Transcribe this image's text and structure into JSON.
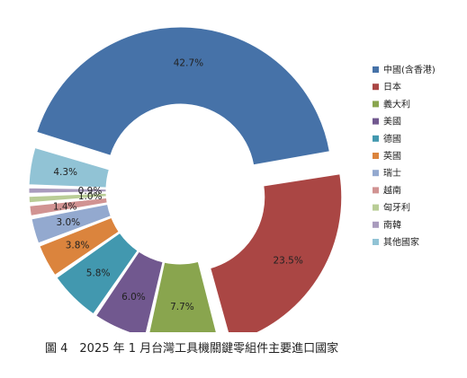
{
  "caption": "圖 4　2025 年 1 月台灣工具機關鍵零組件主要進口國家",
  "chart_data": {
    "type": "pie",
    "donut": true,
    "title": "",
    "legend_position": "right",
    "slices": [
      {
        "label": "中國(含香港)",
        "value": 42.7,
        "display": "42.7%",
        "color": "#4672a8",
        "exploded": true
      },
      {
        "label": "日本",
        "value": 23.5,
        "display": "23.5%",
        "color": "#aa4644",
        "exploded": true
      },
      {
        "label": "義大利",
        "value": 7.7,
        "display": "7.7%",
        "color": "#89a54e",
        "exploded": false
      },
      {
        "label": "美國",
        "value": 6.0,
        "display": "6.0%",
        "color": "#71588f",
        "exploded": false
      },
      {
        "label": "德國",
        "value": 5.8,
        "display": "5.8%",
        "color": "#4298af",
        "exploded": false
      },
      {
        "label": "英國",
        "value": 3.8,
        "display": "3.8%",
        "color": "#db843d",
        "exploded": false
      },
      {
        "label": "瑞士",
        "value": 3.0,
        "display": "3.0%",
        "color": "#93a9cf",
        "exploded": false
      },
      {
        "label": "越南",
        "value": 1.4,
        "display": "1.4%",
        "color": "#d19392",
        "exploded": false
      },
      {
        "label": "匈牙利",
        "value": 1.0,
        "display": "1.0%",
        "color": "#b9cd96",
        "exploded": false
      },
      {
        "label": "南韓",
        "value": 0.9,
        "display": "0.9%",
        "color": "#a99bbd",
        "exploded": false
      },
      {
        "label": "其他國家",
        "value": 4.3,
        "display": "4.3%",
        "color": "#91c3d5",
        "exploded": false
      }
    ]
  }
}
